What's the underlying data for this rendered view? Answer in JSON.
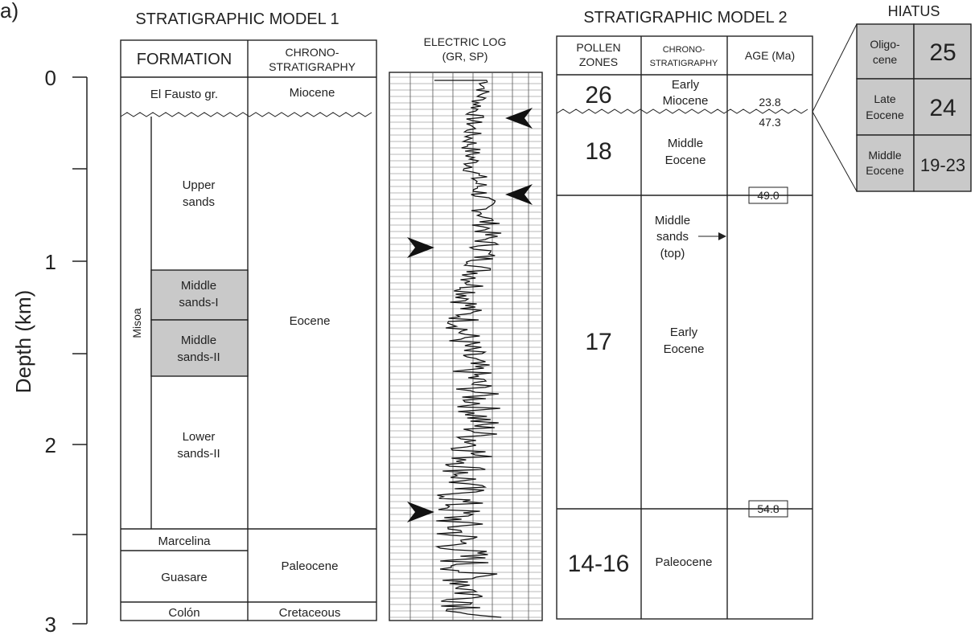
{
  "panel_label": "a)",
  "depth_axis": {
    "label": "Depth (km)",
    "tick_labels": [
      "0",
      "1",
      "2",
      "3"
    ]
  },
  "model1": {
    "title": "STRATIGRAPHIC MODEL 1",
    "col_formation": "FORMATION",
    "col_chrono_line1": "CHRONO-",
    "col_chrono_line2": "STRATIGRAPHY",
    "misoa": "Misoa",
    "formations": {
      "el_fausto": "El Fausto gr.",
      "upper_sands_1": "Upper",
      "upper_sands_2": "sands",
      "middle_i_1": "Middle",
      "middle_i_2": "sands-I",
      "middle_ii_1": "Middle",
      "middle_ii_2": "sands-II",
      "lower_1": "Lower",
      "lower_2": "sands-II",
      "marcelina": "Marcelina",
      "guasare": "Guasare",
      "colon": "Colón"
    },
    "chrono": {
      "miocene": "Miocene",
      "eocene": "Eocene",
      "paleocene": "Paleocene",
      "cretaceous": "Cretaceous"
    }
  },
  "electric_log": {
    "title_line1": "ELECTRIC LOG",
    "title_line2": "(GR, SP)"
  },
  "model2": {
    "title": "STRATIGRAPHIC MODEL 2",
    "col_pollen_1": "POLLEN",
    "col_pollen_2": "ZONES",
    "col_chrono_1": "CHRONO-",
    "col_chrono_2": "STRATIGRAPHY",
    "col_age": "AGE (Ma)",
    "zones": {
      "z26": "26",
      "z18": "18",
      "z17": "17",
      "z14": "14-16"
    },
    "chrono": {
      "early_miocene_1": "Early",
      "early_miocene_2": "Miocene",
      "middle_eocene_1": "Middle",
      "middle_eocene_2": "Eocene",
      "middle_sands_1": "Middle",
      "middle_sands_2": "sands",
      "middle_sands_3": "(top)",
      "early_eocene_1": "Early",
      "early_eocene_2": "Eocene",
      "paleocene": "Paleocene"
    },
    "ages": {
      "a238": "23.8",
      "a473": "47.3",
      "a490": "49.0",
      "a548": "54.8"
    }
  },
  "hiatus": {
    "title": "HIATUS",
    "rows": [
      {
        "epoch_1": "Oligo-",
        "epoch_2": "cene",
        "zone": "25"
      },
      {
        "epoch_1": "Late",
        "epoch_2": "Eocene",
        "zone": "24"
      },
      {
        "epoch_1": "Middle",
        "epoch_2": "Eocene",
        "zone": "19-23"
      }
    ]
  }
}
